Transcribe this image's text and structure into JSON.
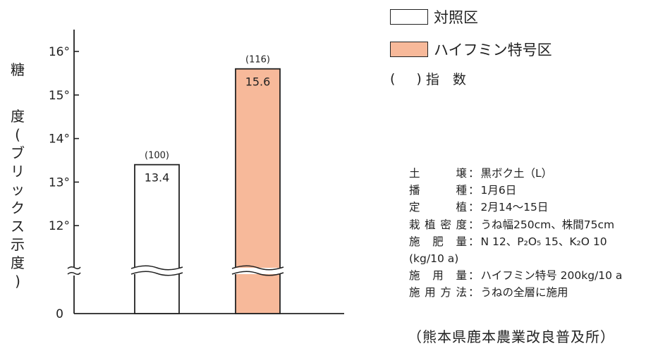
{
  "chart_data": {
    "type": "bar",
    "categories": [
      "対照区",
      "ハイフミン特号区"
    ],
    "values": [
      13.4,
      15.6
    ],
    "value_labels": [
      "13.4",
      "15.6"
    ],
    "index_labels": [
      "(100)",
      "(116)"
    ],
    "bar_colors": [
      "#ffffff",
      "#f7b99a"
    ],
    "ylabel_lines": [
      "糖",
      "度",
      "(",
      "ブ",
      "リ",
      "ッ",
      "ク",
      "ス",
      "示",
      "度",
      ")"
    ],
    "yticks": [
      12,
      13,
      14,
      15,
      16
    ],
    "ytick_labels": [
      "12°",
      "13°",
      "14°",
      "15°",
      "16°"
    ],
    "zero_label": "0",
    "ylim": [
      11,
      16.5
    ],
    "axis_break": true
  },
  "legend": {
    "items": [
      {
        "label": "対照区",
        "color": "#ffffff"
      },
      {
        "label": "ハイフミン特号区",
        "color": "#f7b99a"
      }
    ],
    "paren_open": "(",
    "paren_close": ")",
    "paren_text": "指　数"
  },
  "notes": [
    {
      "label": "土壌",
      "value": "黒ボク土（L）"
    },
    {
      "label": "播種",
      "value": "1月6日"
    },
    {
      "label": "定植",
      "value": "2月14～15日"
    },
    {
      "label": "栽植密度",
      "value": "うね幅250cm、株間75cm"
    },
    {
      "label": "施肥量",
      "value": "N 12、P₂O₅ 15、K₂O 10"
    },
    {
      "label": "",
      "value": "(kg/10 a)"
    },
    {
      "label": "施用量",
      "value": "ハイフミン特号 200kg/10 a"
    },
    {
      "label": "施用方法",
      "value": "うねの全層に施用"
    }
  ],
  "source": "（熊本県鹿本農業改良普及所）"
}
